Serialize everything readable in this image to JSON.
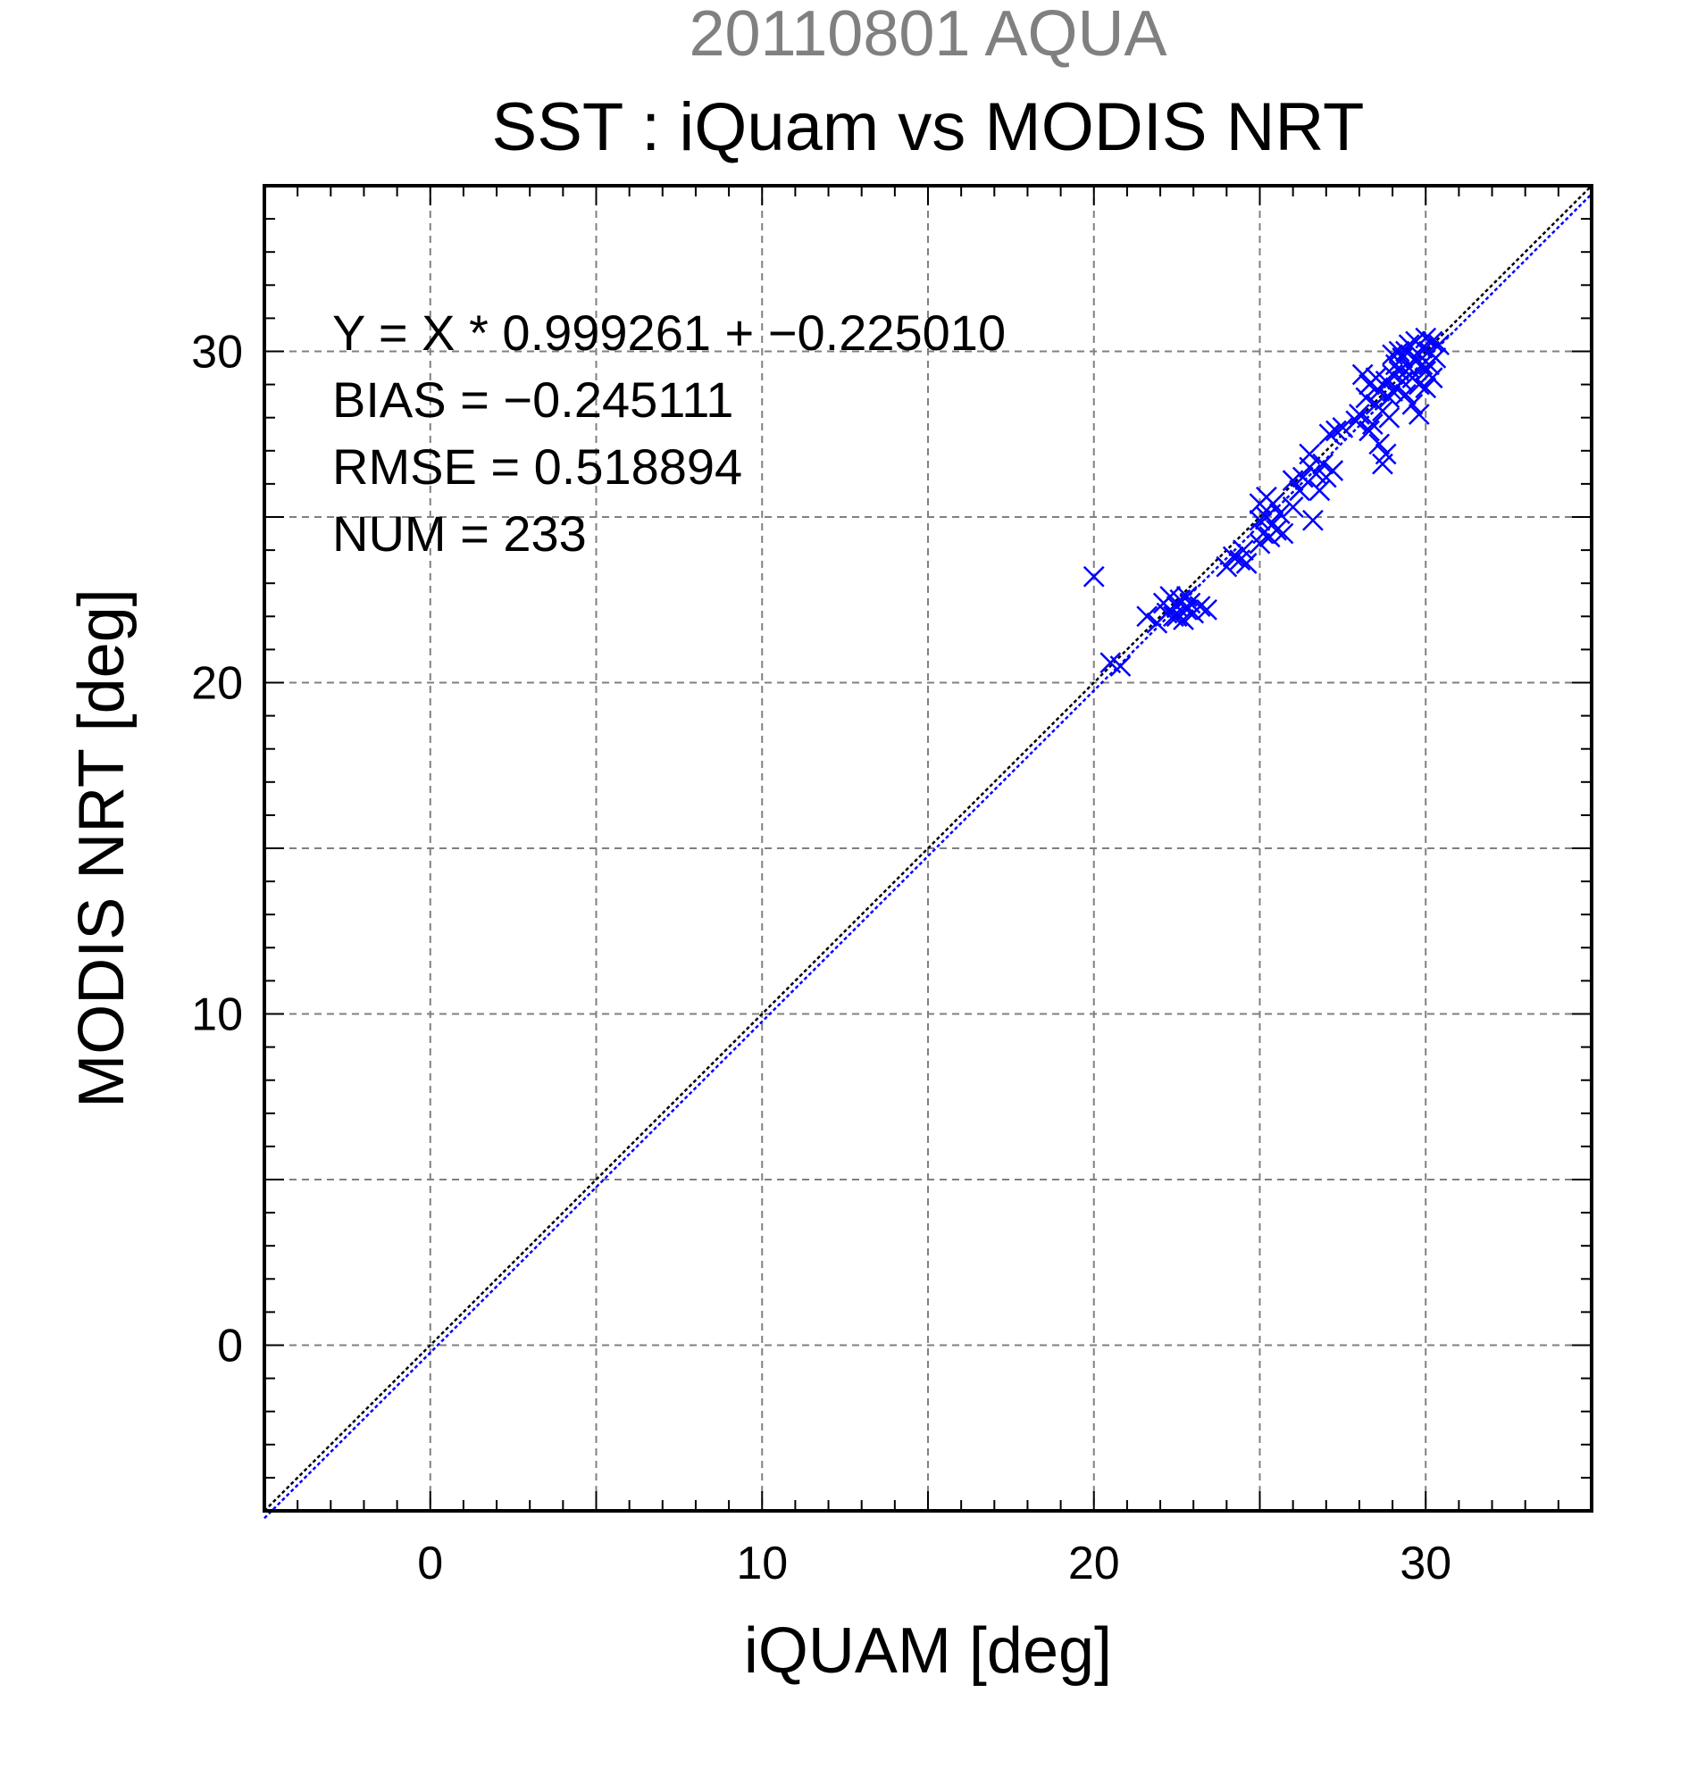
{
  "chart_data": {
    "type": "scatter",
    "date_title": "20110801 AQUA",
    "title": "SST : iQuam vs MODIS NRT",
    "xlabel": "iQUAM [deg]",
    "ylabel": "MODIS NRT [deg]",
    "xlim": [
      -5,
      35
    ],
    "ylim": [
      -5,
      35
    ],
    "xticks": [
      0,
      10,
      20,
      30
    ],
    "yticks": [
      0,
      10,
      20,
      30
    ],
    "grid": true,
    "stats": {
      "equation": "Y = X * 0.999261 + −0.225010",
      "bias": "BIAS = −0.245111",
      "rmse": "RMSE = 0.518894",
      "num": "NUM = 233"
    },
    "lines": [
      {
        "kind": "one-to-one",
        "slope": 1.0,
        "intercept": 0.0,
        "color": "#000000"
      },
      {
        "kind": "regression",
        "slope": 0.999261,
        "intercept": -0.22501,
        "color": "#0000ff"
      }
    ],
    "marker_color": "#0000ff",
    "points": [
      [
        20.0,
        23.2
      ],
      [
        20.5,
        20.6
      ],
      [
        20.8,
        20.5
      ],
      [
        21.6,
        22.0
      ],
      [
        21.9,
        21.8
      ],
      [
        22.1,
        22.4
      ],
      [
        22.2,
        22.1
      ],
      [
        22.3,
        22.6
      ],
      [
        22.4,
        22.0
      ],
      [
        22.5,
        22.3
      ],
      [
        22.6,
        22.5
      ],
      [
        22.7,
        21.9
      ],
      [
        22.8,
        22.2
      ],
      [
        22.9,
        22.4
      ],
      [
        23.0,
        22.1
      ],
      [
        23.2,
        22.3
      ],
      [
        23.4,
        22.2
      ],
      [
        22.5,
        22.0
      ],
      [
        22.8,
        22.6
      ],
      [
        24.0,
        23.5
      ],
      [
        24.2,
        23.8
      ],
      [
        24.4,
        23.7
      ],
      [
        24.6,
        23.6
      ],
      [
        24.5,
        24.0
      ],
      [
        25.0,
        24.2
      ],
      [
        25.0,
        24.9
      ],
      [
        25.0,
        25.4
      ],
      [
        25.1,
        24.5
      ],
      [
        25.2,
        25.0
      ],
      [
        25.2,
        25.6
      ],
      [
        25.3,
        24.4
      ],
      [
        25.4,
        24.8
      ],
      [
        25.4,
        25.4
      ],
      [
        25.5,
        24.6
      ],
      [
        25.6,
        25.1
      ],
      [
        25.7,
        24.5
      ],
      [
        26.0,
        25.3
      ],
      [
        26.0,
        26.1
      ],
      [
        26.2,
        25.8
      ],
      [
        26.3,
        26.2
      ],
      [
        26.5,
        26.5
      ],
      [
        26.5,
        26.9
      ],
      [
        26.6,
        24.9
      ],
      [
        26.7,
        26.3
      ],
      [
        26.8,
        25.8
      ],
      [
        26.9,
        26.6
      ],
      [
        27.0,
        26.2
      ],
      [
        27.2,
        26.4
      ],
      [
        27.1,
        27.5
      ],
      [
        27.3,
        27.6
      ],
      [
        27.5,
        27.7
      ],
      [
        27.9,
        27.9
      ],
      [
        28.0,
        28.1
      ],
      [
        28.1,
        29.3
      ],
      [
        28.2,
        28.6
      ],
      [
        28.3,
        27.6
      ],
      [
        28.3,
        29.0
      ],
      [
        28.4,
        27.8
      ],
      [
        28.5,
        28.4
      ],
      [
        28.5,
        29.2
      ],
      [
        28.6,
        27.2
      ],
      [
        28.6,
        28.8
      ],
      [
        28.7,
        26.6
      ],
      [
        28.7,
        28.2
      ],
      [
        28.8,
        26.9
      ],
      [
        28.8,
        29.1
      ],
      [
        28.9,
        28.6
      ],
      [
        28.9,
        28.0
      ],
      [
        29.0,
        29.3
      ],
      [
        29.0,
        28.8
      ],
      [
        29.1,
        29.6
      ],
      [
        29.1,
        28.9
      ],
      [
        29.2,
        29.4
      ],
      [
        29.3,
        29.8
      ],
      [
        29.3,
        29.1
      ],
      [
        29.4,
        30.0
      ],
      [
        29.4,
        28.7
      ],
      [
        29.5,
        29.5
      ],
      [
        29.5,
        30.2
      ],
      [
        29.6,
        29.2
      ],
      [
        29.6,
        28.4
      ],
      [
        29.7,
        29.8
      ],
      [
        29.7,
        30.3
      ],
      [
        29.8,
        29.0
      ],
      [
        29.8,
        28.1
      ],
      [
        29.9,
        29.6
      ],
      [
        29.9,
        30.1
      ],
      [
        30.0,
        29.4
      ],
      [
        30.0,
        28.9
      ],
      [
        30.1,
        30.0
      ],
      [
        30.1,
        29.6
      ],
      [
        30.2,
        30.3
      ],
      [
        30.2,
        29.2
      ],
      [
        30.3,
        29.8
      ],
      [
        30.4,
        30.2
      ],
      [
        29.2,
        30.0
      ],
      [
        29.0,
        29.9
      ],
      [
        30.0,
        30.4
      ]
    ]
  }
}
